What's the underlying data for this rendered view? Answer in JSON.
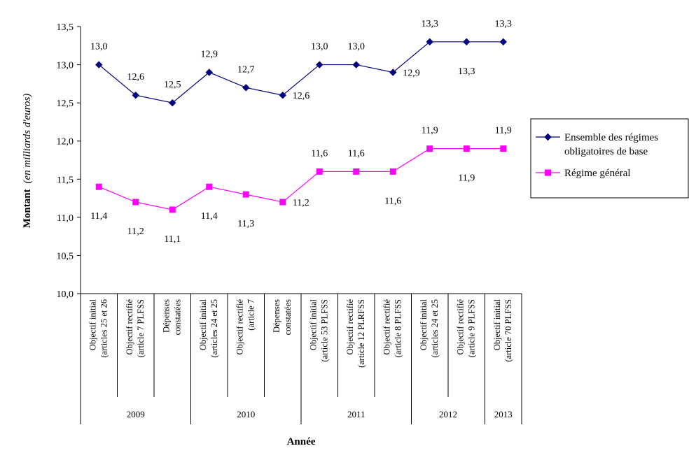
{
  "chart_data": {
    "type": "line",
    "ylabel_bold": "Montant",
    "ylabel_italic": "(en milliards d'euros)",
    "xlabel": "Année",
    "ylim": [
      10.0,
      13.5
    ],
    "yticks": [
      "10,0",
      "10,5",
      "11,0",
      "11,5",
      "12,0",
      "12,5",
      "13,0",
      "13,5"
    ],
    "categories": [
      [
        "Objectif initial",
        "(articles 25 et 26"
      ],
      [
        "Objectif rectifié",
        "(article 7 PLFSS"
      ],
      [
        "Dépenses",
        "constatées"
      ],
      [
        "Objectif initial",
        "(articles 24 et 25"
      ],
      [
        "Objectif rectifié",
        "(article 7"
      ],
      [
        "Dépenses",
        "constatées"
      ],
      [
        "Objectif initial",
        "(article 53 PLFSS"
      ],
      [
        "Objectif rectifié",
        "(article 12 PLRFSS"
      ],
      [
        "Objectif rectifié",
        "(article 8 PLFSS"
      ],
      [
        "Objectif initial",
        "(articles 24 et 25"
      ],
      [
        "Objectif rectifié",
        "(article 9 PLFSS"
      ],
      [
        "Objectif initial",
        "(article 70 PLFSS"
      ]
    ],
    "years": [
      {
        "label": "2009",
        "start": 0,
        "end": 3
      },
      {
        "label": "2010",
        "start": 3,
        "end": 6
      },
      {
        "label": "2011",
        "start": 6,
        "end": 9
      },
      {
        "label": "2012",
        "start": 9,
        "end": 11
      },
      {
        "label": "2013",
        "start": 11,
        "end": 12
      }
    ],
    "series": [
      {
        "name": "Ensemble des régimes obligatoires de base",
        "name_lines": [
          "Ensemble des régimes",
          "obligatoires de base"
        ],
        "color": "#000080",
        "marker": "diamond",
        "values": [
          13.0,
          12.6,
          12.5,
          12.9,
          12.7,
          12.6,
          13.0,
          13.0,
          12.9,
          13.3,
          13.3,
          13.3
        ],
        "labels": [
          "13,0",
          "12,6",
          "12,5",
          "12,9",
          "12,7",
          "12,6",
          "13,0",
          "13,0",
          "12,9",
          "13,3",
          "13,3",
          "13,3"
        ],
        "label_pos": [
          "above",
          "above",
          "above",
          "above",
          "above",
          "right",
          "above",
          "above",
          "right",
          "above",
          "below",
          "above"
        ]
      },
      {
        "name": "Régime général",
        "name_lines": [
          "Régime général"
        ],
        "color": "#ff00ff",
        "marker": "square",
        "values": [
          11.4,
          11.2,
          11.1,
          11.4,
          11.3,
          11.2,
          11.6,
          11.6,
          11.6,
          11.9,
          11.9,
          11.9
        ],
        "labels": [
          "11,4",
          "11,2",
          "11,1",
          "11,4",
          "11,3",
          "11,2",
          "11,6",
          "11,6",
          "11,6",
          "11,9",
          "11,9",
          "11,9"
        ],
        "label_pos": [
          "below",
          "below",
          "below",
          "below",
          "below",
          "right",
          "above",
          "above",
          "below",
          "above",
          "below",
          "above"
        ]
      }
    ],
    "legend_position": "right"
  }
}
